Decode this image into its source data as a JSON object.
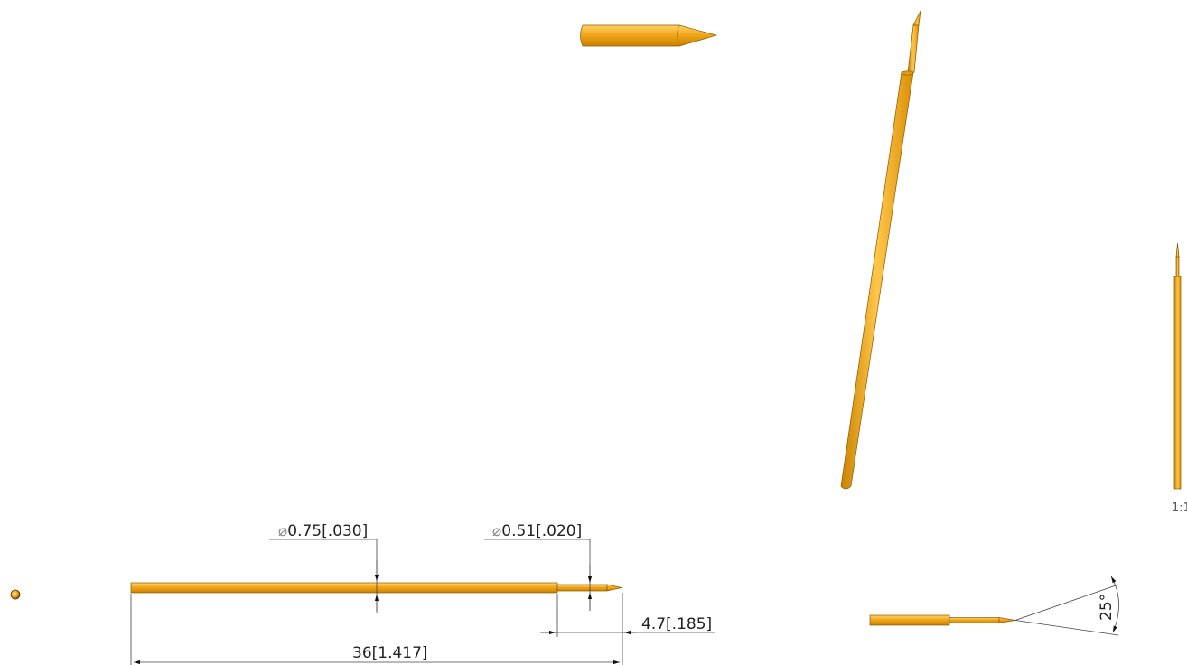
{
  "dimensions": {
    "dia_body": {
      "symbol": "⌀",
      "value": "0.75[.030]"
    },
    "dia_tip": {
      "symbol": "⌀",
      "value": "0.51[.020]"
    },
    "tip_length": "4.7[.185]",
    "overall_length": "36[1.417]",
    "tip_angle": "25°"
  },
  "scale_label": "1:1",
  "colors": {
    "part": "#f2a71b",
    "part_highlight": "#ffd36a",
    "part_shadow": "#c98200",
    "dim_line": "#444444",
    "text": "#222222"
  }
}
